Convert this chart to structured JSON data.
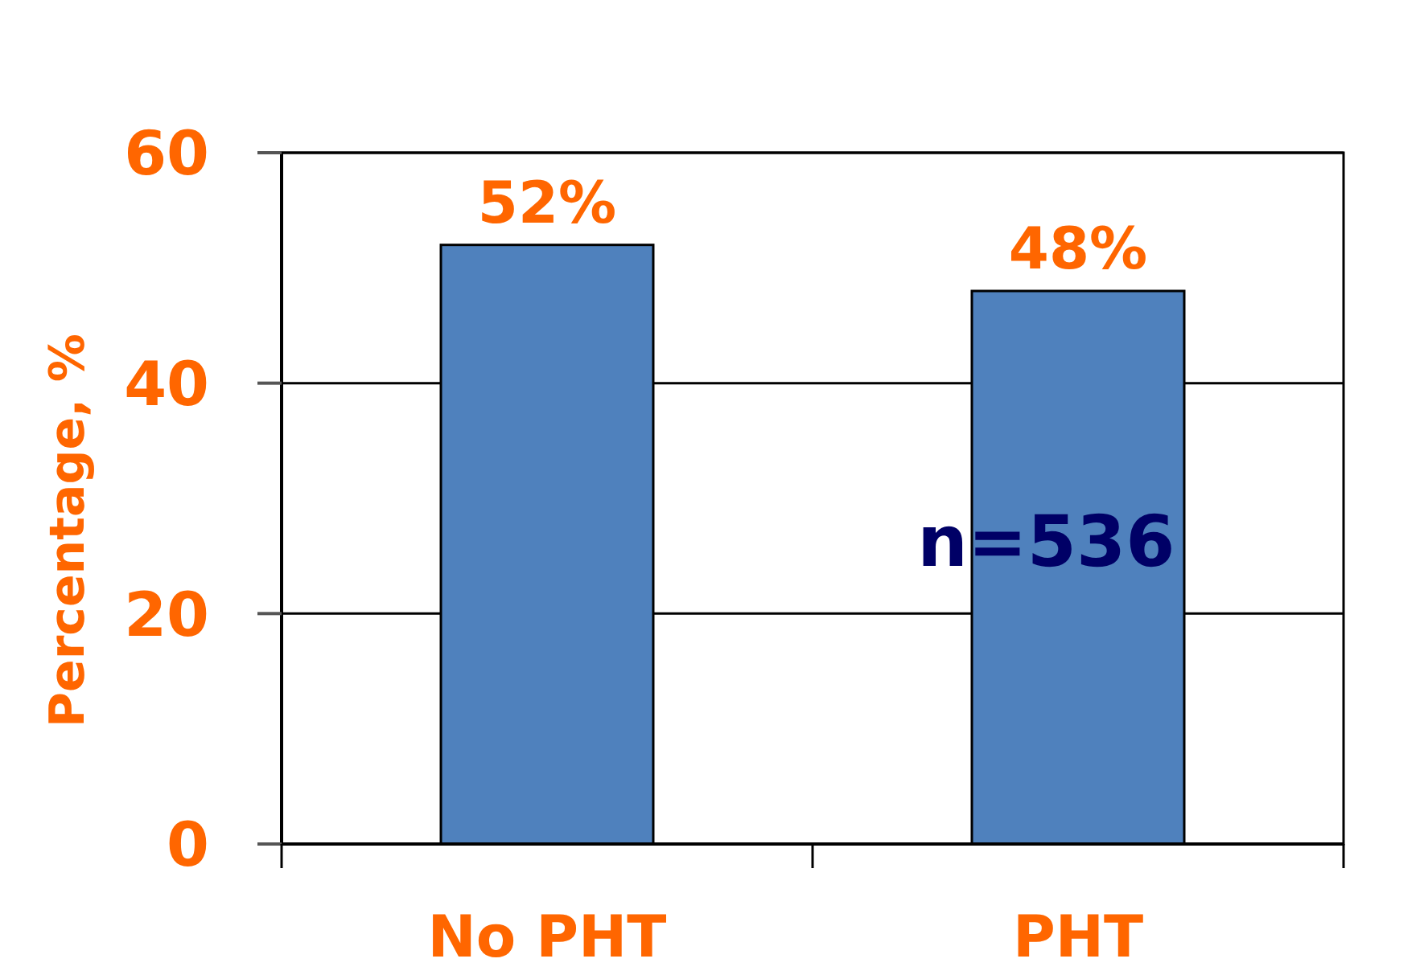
{
  "chart_data": {
    "type": "bar",
    "categories": [
      "No PHT",
      "PHT"
    ],
    "values": [
      52,
      48
    ],
    "color": "#4f81bd",
    "value_labels": [
      "52%",
      "48%"
    ],
    "ylabel": "Percentage, %",
    "ylim": [
      0,
      60
    ],
    "yticks": [
      0,
      20,
      40,
      60
    ],
    "grid": "y",
    "annotations": [
      "n=536"
    ]
  }
}
